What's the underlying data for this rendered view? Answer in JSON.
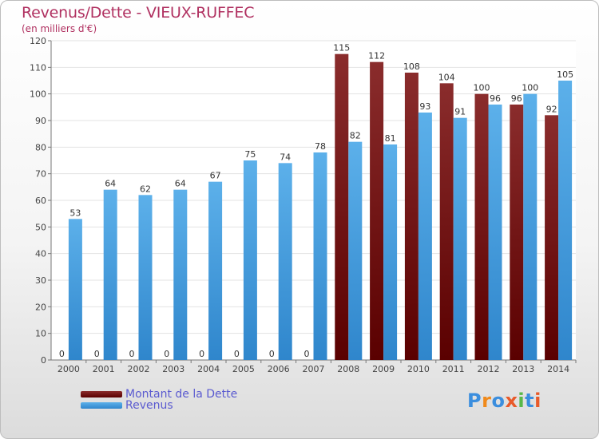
{
  "chart_data": {
    "type": "bar",
    "title": "Revenus/Dette - VIEUX-RUFFEC",
    "subtitle": "(en milliers d'€)",
    "xlabel": "",
    "ylabel": "",
    "ylim": [
      0,
      120
    ],
    "yticks": [
      "0",
      "10",
      "20",
      "30",
      "40",
      "50",
      "60",
      "70",
      "80",
      "90",
      "100",
      "110",
      "120"
    ],
    "grid": true,
    "legend_position": "bottom-left",
    "categories": [
      "2000",
      "2001",
      "2002",
      "2003",
      "2004",
      "2005",
      "2006",
      "2007",
      "2008",
      "2009",
      "2010",
      "2011",
      "2012",
      "2013",
      "2014"
    ],
    "series": [
      {
        "name": "Montant de la Dette",
        "color": "#7a1a1a",
        "values": [
          0,
          0,
          0,
          0,
          0,
          0,
          0,
          0,
          115,
          112,
          108,
          104,
          100,
          96,
          92
        ]
      },
      {
        "name": "Revenus",
        "color": "#4aa3e0",
        "values": [
          53,
          64,
          62,
          64,
          67,
          75,
          74,
          78,
          82,
          81,
          93,
          91,
          96,
          100,
          105
        ]
      }
    ]
  },
  "branding": {
    "logo_letters": [
      "P",
      "r",
      "o",
      "x",
      "i",
      "t",
      "i"
    ],
    "logo_colors": [
      "#3b8ede",
      "#f08a1c",
      "#3b8ede",
      "#e85a2a",
      "#58b848",
      "#3b8ede",
      "#e85a2a"
    ]
  }
}
